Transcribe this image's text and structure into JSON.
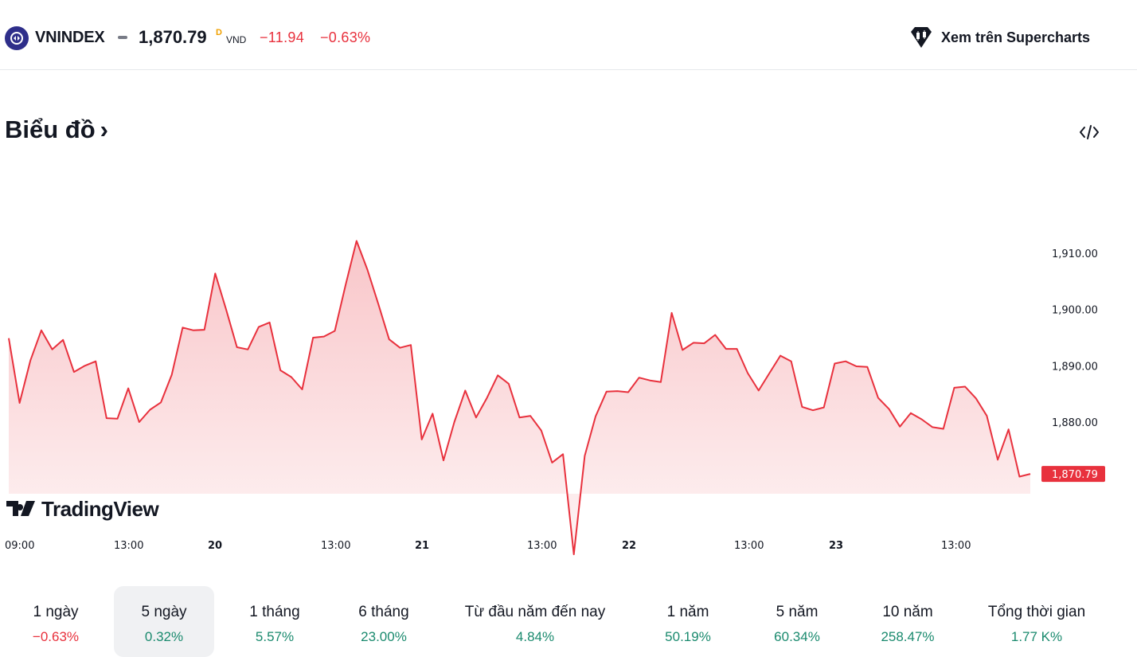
{
  "header": {
    "symbol": "VNINDEX",
    "price": "1,870.79",
    "price_superscript": "D",
    "currency": "VND",
    "change": "−11.94",
    "change_percent": "−0.63%",
    "supercharts_label": "Xem trên Supercharts",
    "icons": {
      "logo": "vnindex-logo-icon",
      "supercharts": "supercharts-icon"
    }
  },
  "section": {
    "title": "Biểu đồ",
    "title_chevron": "›",
    "embed_icon": "code-embed-icon"
  },
  "chart_data": {
    "type": "area",
    "color": "#e8313d",
    "brand": "TradingView",
    "y_ticks": [
      "1,910.00",
      "1,900.00",
      "1,890.00",
      "1,880.00"
    ],
    "x_ticks": [
      {
        "label": "09:00",
        "bold": false
      },
      {
        "label": "13:00",
        "bold": false
      },
      {
        "label": "20",
        "bold": true
      },
      {
        "label": "13:00",
        "bold": false
      },
      {
        "label": "21",
        "bold": true
      },
      {
        "label": "13:00",
        "bold": false
      },
      {
        "label": "22",
        "bold": true
      },
      {
        "label": "13:00",
        "bold": false
      },
      {
        "label": "23",
        "bold": true
      },
      {
        "label": "13:00",
        "bold": false
      }
    ],
    "last_value_label": "1,870.79",
    "values": [
      1894.9,
      1883.4,
      1891.0,
      1896.3,
      1892.9,
      1894.6,
      1888.9,
      1890.0,
      1890.8,
      1880.7,
      1880.6,
      1886.0,
      1880.0,
      1882.2,
      1883.5,
      1888.4,
      1896.8,
      1896.3,
      1896.4,
      1906.4,
      1900.0,
      1893.3,
      1892.9,
      1896.9,
      1897.7,
      1889.2,
      1888.0,
      1885.8,
      1895.0,
      1895.2,
      1896.2,
      1904.4,
      1912.2,
      1907.1,
      1901.0,
      1894.7,
      1893.2,
      1893.7,
      1876.9,
      1881.5,
      1873.2,
      1880.0,
      1885.6,
      1880.8,
      1884.3,
      1888.3,
      1886.8,
      1880.8,
      1881.1,
      1878.5,
      1872.8,
      1874.3,
      1856.5,
      1874.0,
      1881.0,
      1885.4,
      1885.5,
      1885.3,
      1887.9,
      1887.4,
      1887.1,
      1899.4,
      1892.8,
      1894.1,
      1894.0,
      1895.5,
      1893.0,
      1893.0,
      1888.7,
      1885.6,
      1888.7,
      1891.8,
      1890.8,
      1882.7,
      1882.1,
      1882.6,
      1890.4,
      1890.8,
      1889.9,
      1889.8,
      1884.3,
      1882.3,
      1879.2,
      1881.6,
      1880.5,
      1879.1,
      1878.8,
      1886.1,
      1886.3,
      1884.2,
      1881.1,
      1873.3,
      1878.7,
      1870.3,
      1870.79
    ]
  },
  "periods": [
    {
      "label": "1 ngày",
      "value": "−0.63%",
      "trend": "down"
    },
    {
      "label": "5 ngày",
      "value": "0.32%",
      "trend": "up"
    },
    {
      "label": "1 tháng",
      "value": "5.57%",
      "trend": "up"
    },
    {
      "label": "6 tháng",
      "value": "23.00%",
      "trend": "up"
    },
    {
      "label": "Từ đầu năm đến nay",
      "value": "4.84%",
      "trend": "up"
    },
    {
      "label": "1 năm",
      "value": "50.19%",
      "trend": "up"
    },
    {
      "label": "5 năm",
      "value": "60.34%",
      "trend": "up"
    },
    {
      "label": "10 năm",
      "value": "258.47%",
      "trend": "up"
    },
    {
      "label": "Tổng thời gian",
      "value": "1.77 K%",
      "trend": "up"
    }
  ],
  "active_period": "5 ngày"
}
